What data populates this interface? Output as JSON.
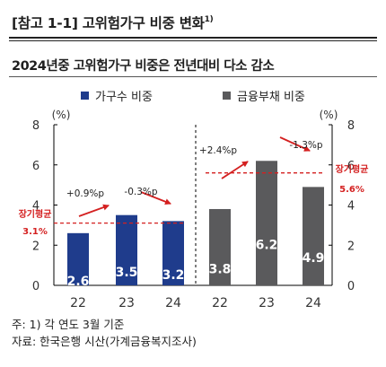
{
  "header": {
    "title": "[참고 1-1] 고위험가구 비중 변화",
    "title_sup": "1)",
    "subtitle": "2024년중 고위험가구 비중은 전년대비 다소 감소"
  },
  "colors": {
    "blue": "#1f3c8c",
    "gray": "#5a5a5c",
    "red": "#d42020",
    "annotation": "#1f1f1f"
  },
  "chart_data": {
    "type": "bar",
    "series": [
      {
        "name": "가구수 비중",
        "axis": "left",
        "categories": [
          "22",
          "23",
          "24"
        ],
        "values": [
          2.6,
          3.5,
          3.2
        ],
        "value_labels": [
          "2.6",
          "3.5",
          "3.2"
        ],
        "color": "#1f3c8c",
        "long_term_average": {
          "label": "장기평균",
          "value": 3.1,
          "value_label": "3.1%"
        },
        "changes": [
          {
            "label": "+0.9%p",
            "from": "22",
            "to": "23",
            "direction": "up"
          },
          {
            "label": "-0.3%p",
            "from": "23",
            "to": "24",
            "direction": "down"
          }
        ]
      },
      {
        "name": "금융부채 비중",
        "axis": "right",
        "categories": [
          "22",
          "23",
          "24"
        ],
        "values": [
          3.8,
          6.2,
          4.9
        ],
        "value_labels": [
          "3.8",
          "6.2",
          "4.9"
        ],
        "color": "#5a5a5c",
        "long_term_average": {
          "label": "장기평균",
          "value": 5.6,
          "value_label": "5.6%"
        },
        "changes": [
          {
            "label": "+2.4%p",
            "from": "22",
            "to": "23",
            "direction": "up"
          },
          {
            "label": "-1.3%p",
            "from": "23",
            "to": "24",
            "direction": "down"
          }
        ]
      }
    ],
    "left_axis": {
      "unit": "(%)",
      "ylim": [
        0,
        8
      ],
      "ticks": [
        "0",
        "2",
        "4",
        "6",
        "8"
      ]
    },
    "right_axis": {
      "unit": "(%)",
      "ylim": [
        0,
        8
      ],
      "ticks": [
        "0",
        "2",
        "4",
        "6",
        "8"
      ]
    },
    "grid": false,
    "legend_position": "top"
  },
  "notes": {
    "footnote": "주: 1) 각 연도 3월 기준",
    "source": "자료: 한국은행 시산(가계금융복지조사)"
  }
}
